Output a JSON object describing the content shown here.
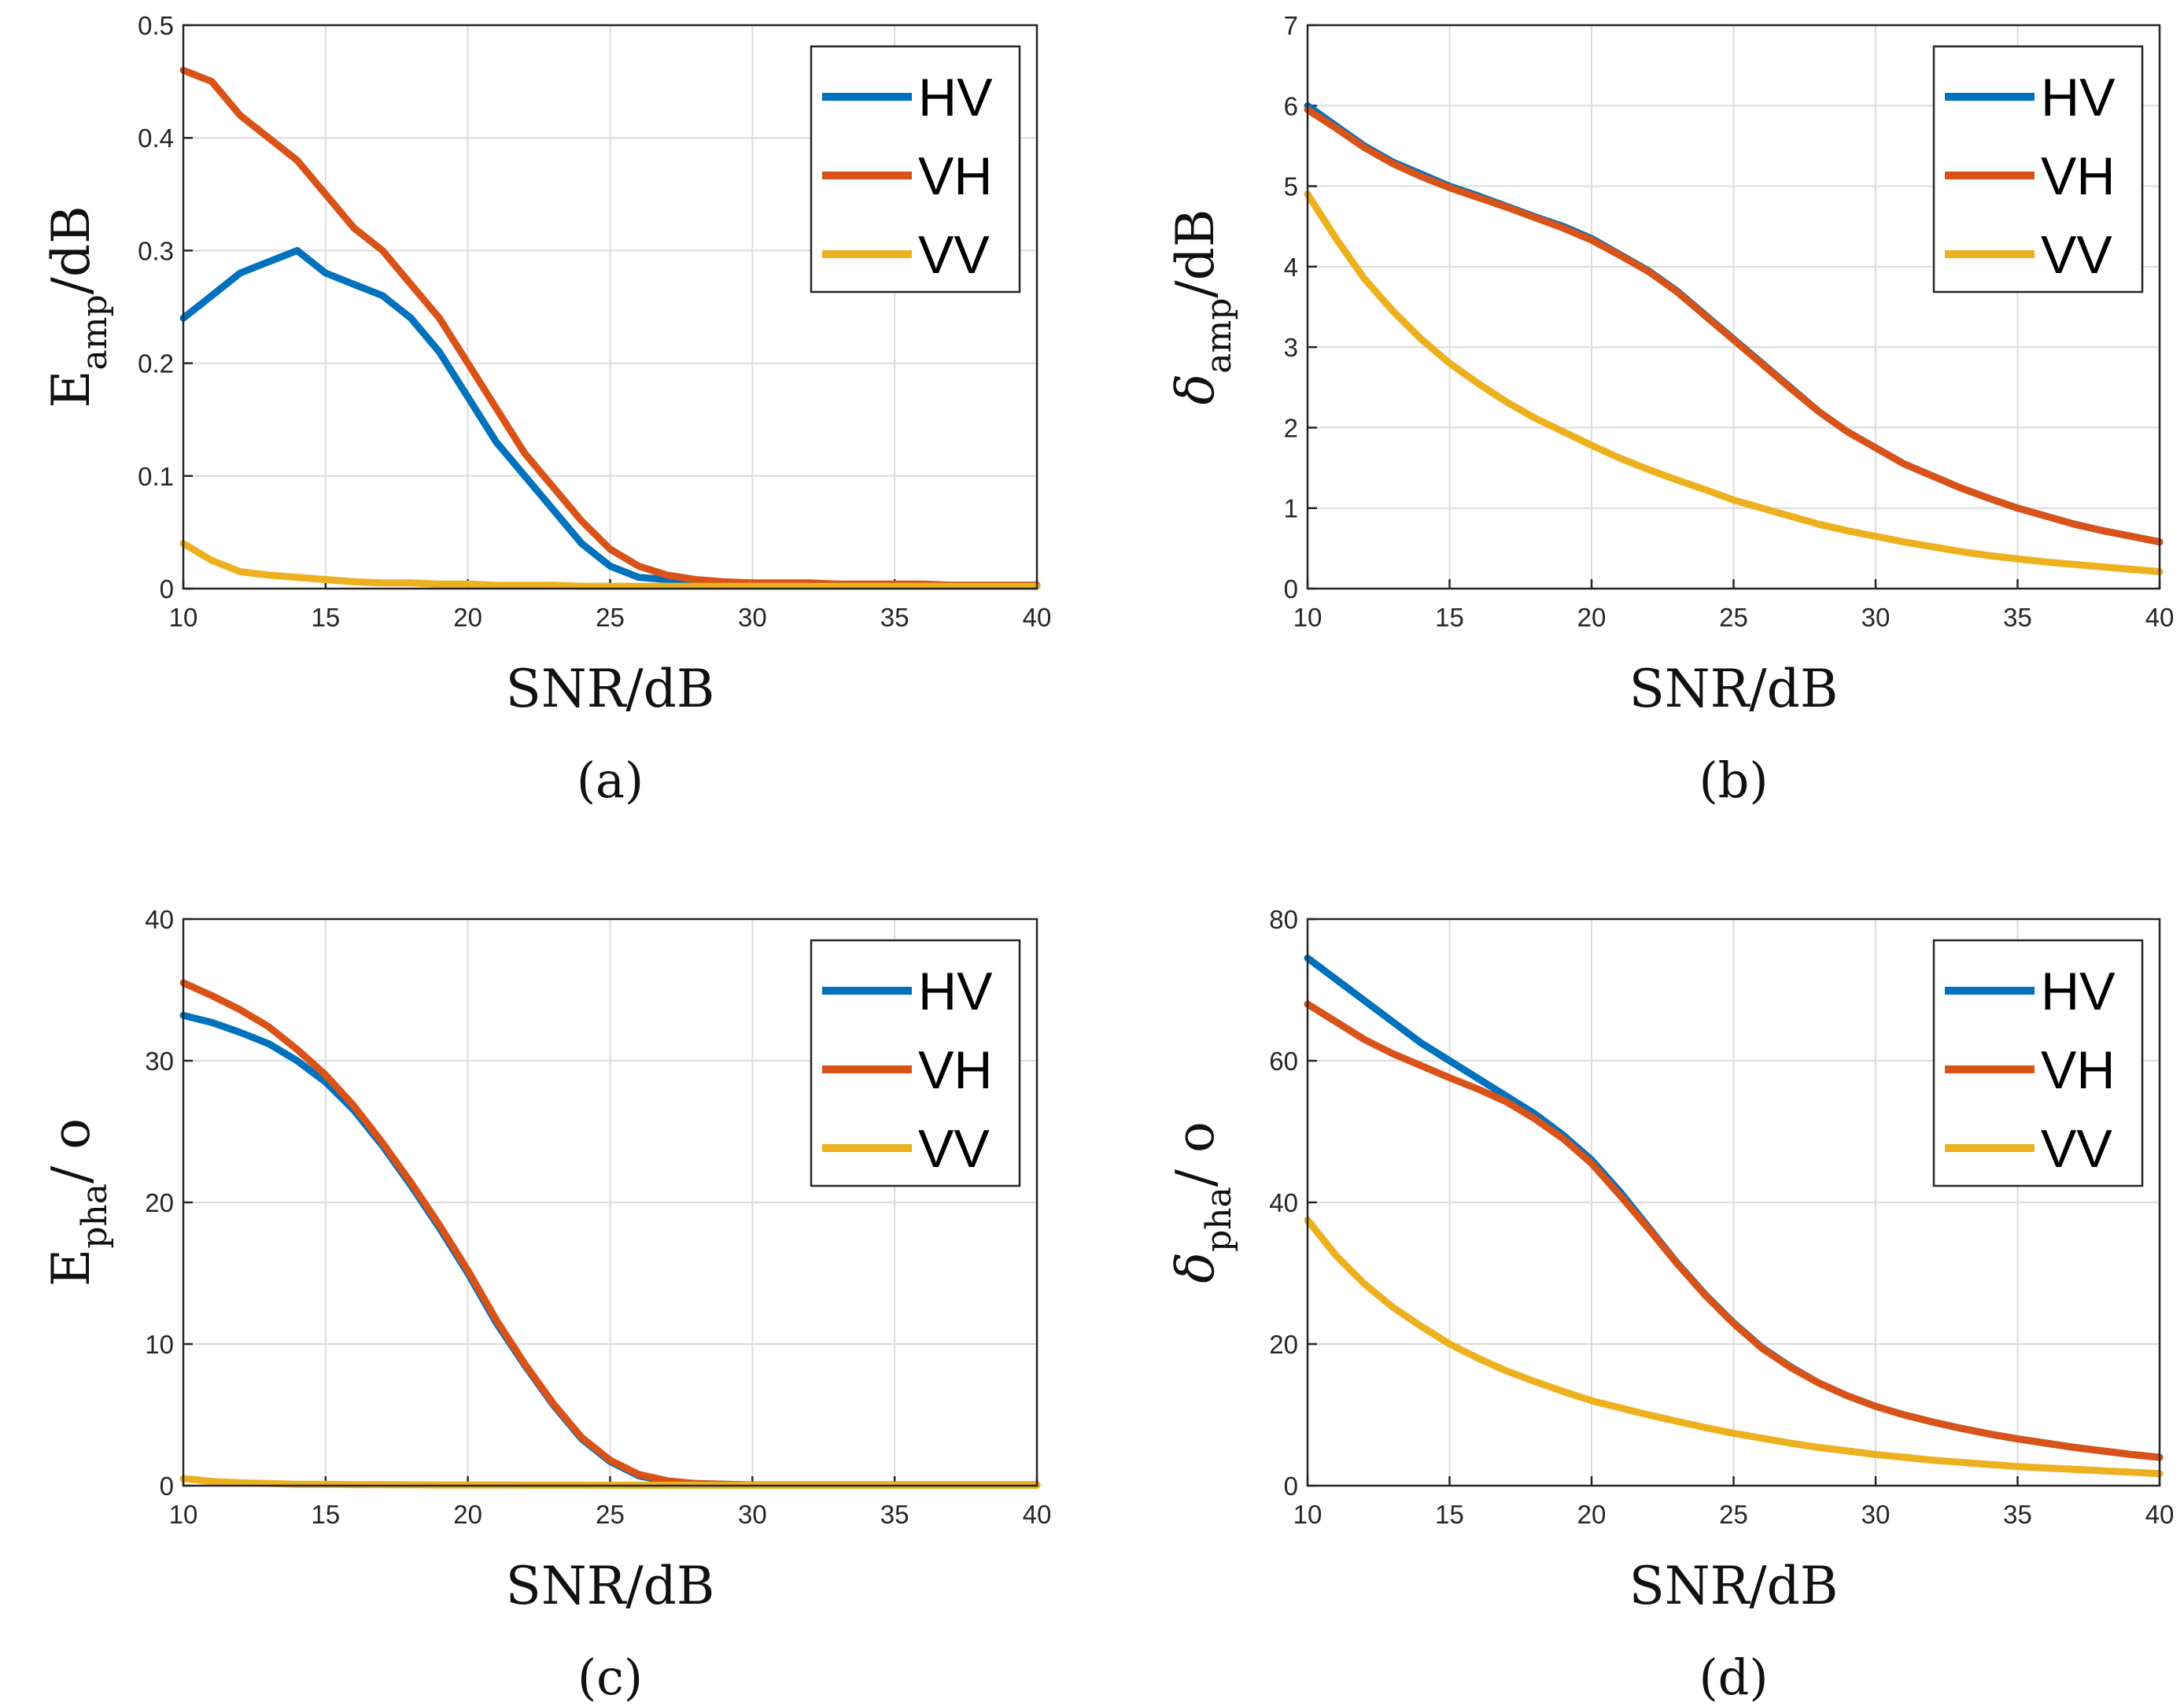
{
  "chart_data": [
    {
      "type": "line",
      "caption": "(a)",
      "xlabel": "SNR/dB",
      "ylabel": {
        "main": "E",
        "sub": "amp",
        "suffix": "/dB"
      },
      "xlim": [
        10,
        40
      ],
      "ylim": [
        0,
        0.5
      ],
      "xticks": [
        "10",
        "15",
        "20",
        "25",
        "30",
        "35",
        "40"
      ],
      "yticks": [
        "0",
        "0.1",
        "0.2",
        "0.3",
        "0.4",
        "0.5"
      ],
      "grid": true,
      "legend_position": "top-right",
      "x": [
        10,
        11,
        12,
        13,
        14,
        15,
        16,
        17,
        18,
        19,
        20,
        21,
        22,
        23,
        24,
        25,
        26,
        27,
        28,
        29,
        30,
        31,
        32,
        33,
        34,
        35,
        36,
        37,
        38,
        39,
        40
      ],
      "series": [
        {
          "name": "HV",
          "color": "#0072BD",
          "values": [
            0.24,
            0.26,
            0.28,
            0.29,
            0.3,
            0.28,
            0.27,
            0.26,
            0.24,
            0.21,
            0.17,
            0.13,
            0.1,
            0.07,
            0.04,
            0.02,
            0.01,
            0.008,
            0.006,
            0.005,
            0.004,
            0.004,
            0.004,
            0.004,
            0.003,
            0.003,
            0.003,
            0.003,
            0.003,
            0.003,
            0.003
          ]
        },
        {
          "name": "VH",
          "color": "#D95319",
          "values": [
            0.46,
            0.45,
            0.42,
            0.4,
            0.38,
            0.35,
            0.32,
            0.3,
            0.27,
            0.24,
            0.2,
            0.16,
            0.12,
            0.09,
            0.06,
            0.035,
            0.02,
            0.012,
            0.008,
            0.006,
            0.005,
            0.005,
            0.005,
            0.004,
            0.004,
            0.004,
            0.004,
            0.003,
            0.003,
            0.003,
            0.003
          ]
        },
        {
          "name": "VV",
          "color": "#EDB120",
          "values": [
            0.04,
            0.025,
            0.015,
            0.012,
            0.01,
            0.008,
            0.006,
            0.005,
            0.005,
            0.004,
            0.004,
            0.003,
            0.003,
            0.003,
            0.002,
            0.002,
            0.002,
            0.002,
            0.002,
            0.002,
            0.002,
            0.002,
            0.002,
            0.002,
            0.002,
            0.002,
            0.002,
            0.002,
            0.002,
            0.002,
            0.002
          ]
        }
      ]
    },
    {
      "type": "line",
      "caption": "(b)",
      "xlabel": "SNR/dB",
      "ylabel": {
        "main": "δ",
        "sub": "amp",
        "suffix": "/dB"
      },
      "xlim": [
        10,
        40
      ],
      "ylim": [
        0,
        7
      ],
      "xticks": [
        "10",
        "15",
        "20",
        "25",
        "30",
        "35",
        "40"
      ],
      "yticks": [
        "0",
        "1",
        "2",
        "3",
        "4",
        "5",
        "6",
        "7"
      ],
      "grid": true,
      "legend_position": "top-right",
      "x": [
        10,
        11,
        12,
        13,
        14,
        15,
        16,
        17,
        18,
        19,
        20,
        21,
        22,
        23,
        24,
        25,
        26,
        27,
        28,
        29,
        30,
        31,
        32,
        33,
        34,
        35,
        36,
        37,
        38,
        39,
        40
      ],
      "series": [
        {
          "name": "HV",
          "color": "#0072BD",
          "values": [
            6.0,
            5.75,
            5.5,
            5.3,
            5.15,
            5.0,
            4.88,
            4.75,
            4.62,
            4.5,
            4.35,
            4.15,
            3.95,
            3.7,
            3.4,
            3.1,
            2.8,
            2.5,
            2.2,
            1.95,
            1.75,
            1.55,
            1.4,
            1.25,
            1.12,
            1.0,
            0.9,
            0.8,
            0.72,
            0.65,
            0.58
          ]
        },
        {
          "name": "VH",
          "color": "#D95319",
          "values": [
            5.95,
            5.72,
            5.48,
            5.28,
            5.12,
            4.98,
            4.86,
            4.74,
            4.61,
            4.48,
            4.33,
            4.14,
            3.94,
            3.69,
            3.39,
            3.09,
            2.79,
            2.49,
            2.2,
            1.95,
            1.75,
            1.55,
            1.4,
            1.25,
            1.12,
            1.0,
            0.9,
            0.8,
            0.72,
            0.65,
            0.58
          ]
        },
        {
          "name": "VV",
          "color": "#EDB120",
          "values": [
            4.9,
            4.35,
            3.85,
            3.45,
            3.1,
            2.8,
            2.55,
            2.32,
            2.12,
            1.95,
            1.78,
            1.62,
            1.48,
            1.35,
            1.23,
            1.1,
            1.0,
            0.9,
            0.8,
            0.72,
            0.65,
            0.58,
            0.52,
            0.46,
            0.41,
            0.37,
            0.33,
            0.3,
            0.27,
            0.24,
            0.21
          ]
        }
      ]
    },
    {
      "type": "line",
      "caption": "(c)",
      "xlabel": "SNR/dB",
      "ylabel": {
        "main": "E",
        "sub": "pha",
        "suffix": "/ o"
      },
      "xlim": [
        10,
        40
      ],
      "ylim": [
        0,
        40
      ],
      "xticks": [
        "10",
        "15",
        "20",
        "25",
        "30",
        "35",
        "40"
      ],
      "yticks": [
        "0",
        "10",
        "20",
        "30",
        "40"
      ],
      "grid": true,
      "legend_position": "top-right",
      "x": [
        10,
        11,
        12,
        13,
        14,
        15,
        16,
        17,
        18,
        19,
        20,
        21,
        22,
        23,
        24,
        25,
        26,
        27,
        28,
        29,
        30,
        31,
        32,
        33,
        34,
        35,
        36,
        37,
        38,
        39,
        40
      ],
      "series": [
        {
          "name": "HV",
          "color": "#0072BD",
          "values": [
            33.2,
            32.7,
            32.0,
            31.2,
            30.0,
            28.5,
            26.5,
            24.0,
            21.2,
            18.2,
            15.0,
            11.5,
            8.5,
            5.7,
            3.3,
            1.7,
            0.7,
            0.3,
            0.15,
            0.1,
            0.05,
            0.05,
            0.05,
            0.05,
            0.05,
            0.05,
            0.05,
            0.05,
            0.05,
            0.05,
            0.05
          ]
        },
        {
          "name": "VH",
          "color": "#D95319",
          "values": [
            35.5,
            34.6,
            33.6,
            32.4,
            30.8,
            29.0,
            26.8,
            24.2,
            21.4,
            18.4,
            15.2,
            11.7,
            8.6,
            5.8,
            3.4,
            1.8,
            0.8,
            0.35,
            0.15,
            0.1,
            0.05,
            0.05,
            0.05,
            0.05,
            0.05,
            0.05,
            0.05,
            0.05,
            0.05,
            0.05,
            0.05
          ]
        },
        {
          "name": "VV",
          "color": "#EDB120",
          "values": [
            0.5,
            0.3,
            0.2,
            0.15,
            0.1,
            0.1,
            0.08,
            0.07,
            0.06,
            0.05,
            0.05,
            0.05,
            0.04,
            0.04,
            0.04,
            0.03,
            0.03,
            0.03,
            0.03,
            0.03,
            0.03,
            0.03,
            0.03,
            0.03,
            0.03,
            0.03,
            0.03,
            0.03,
            0.03,
            0.03,
            0.03
          ]
        }
      ]
    },
    {
      "type": "line",
      "caption": "(d)",
      "xlabel": "SNR/dB",
      "ylabel": {
        "main": "δ",
        "sub": "pha",
        "suffix": "/ o"
      },
      "xlim": [
        10,
        40
      ],
      "ylim": [
        0,
        80
      ],
      "xticks": [
        "10",
        "15",
        "20",
        "25",
        "30",
        "35",
        "40"
      ],
      "yticks": [
        "0",
        "20",
        "40",
        "60",
        "80"
      ],
      "grid": true,
      "legend_position": "top-right",
      "x": [
        10,
        11,
        12,
        13,
        14,
        15,
        16,
        17,
        18,
        19,
        20,
        21,
        22,
        23,
        24,
        25,
        26,
        27,
        28,
        29,
        30,
        31,
        32,
        33,
        34,
        35,
        36,
        37,
        38,
        39,
        40
      ],
      "series": [
        {
          "name": "HV",
          "color": "#0072BD",
          "values": [
            74.5,
            71.5,
            68.5,
            65.5,
            62.5,
            60.0,
            57.5,
            55.0,
            52.5,
            49.5,
            46.0,
            41.5,
            36.5,
            31.5,
            27.0,
            23.0,
            19.5,
            16.8,
            14.5,
            12.7,
            11.2,
            10.0,
            9.0,
            8.1,
            7.3,
            6.6,
            6.0,
            5.4,
            4.9,
            4.4,
            4.0
          ]
        },
        {
          "name": "VH",
          "color": "#D95319",
          "values": [
            68.0,
            65.5,
            63.0,
            61.0,
            59.3,
            57.6,
            56.0,
            54.2,
            51.8,
            49.0,
            45.5,
            41.0,
            36.3,
            31.4,
            26.9,
            22.9,
            19.4,
            16.7,
            14.5,
            12.7,
            11.2,
            10.0,
            9.0,
            8.1,
            7.3,
            6.6,
            6.0,
            5.4,
            4.9,
            4.4,
            4.0
          ]
        },
        {
          "name": "VV",
          "color": "#EDB120",
          "values": [
            37.5,
            32.5,
            28.5,
            25.2,
            22.5,
            20.0,
            18.0,
            16.2,
            14.7,
            13.3,
            12.0,
            11.0,
            10.0,
            9.1,
            8.2,
            7.4,
            6.7,
            6.0,
            5.4,
            4.9,
            4.4,
            4.0,
            3.6,
            3.3,
            3.0,
            2.7,
            2.5,
            2.3,
            2.1,
            1.9,
            1.7
          ]
        }
      ]
    }
  ]
}
